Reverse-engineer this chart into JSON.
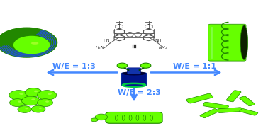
{
  "bg_color": "#ffffff",
  "arrow_color": "#4488ff",
  "label_color": "#4488ff",
  "green_bright": "#66ff00",
  "green_dark": "#228800",
  "green_mid": "#44cc00",
  "blue_dark": "#001488",
  "blue_mid": "#2244cc",
  "labels": {
    "left": "W/E = 1:3",
    "right": "W/E = 1:1",
    "bottom": "W/E = 2:3"
  },
  "label_fontsize": 8
}
